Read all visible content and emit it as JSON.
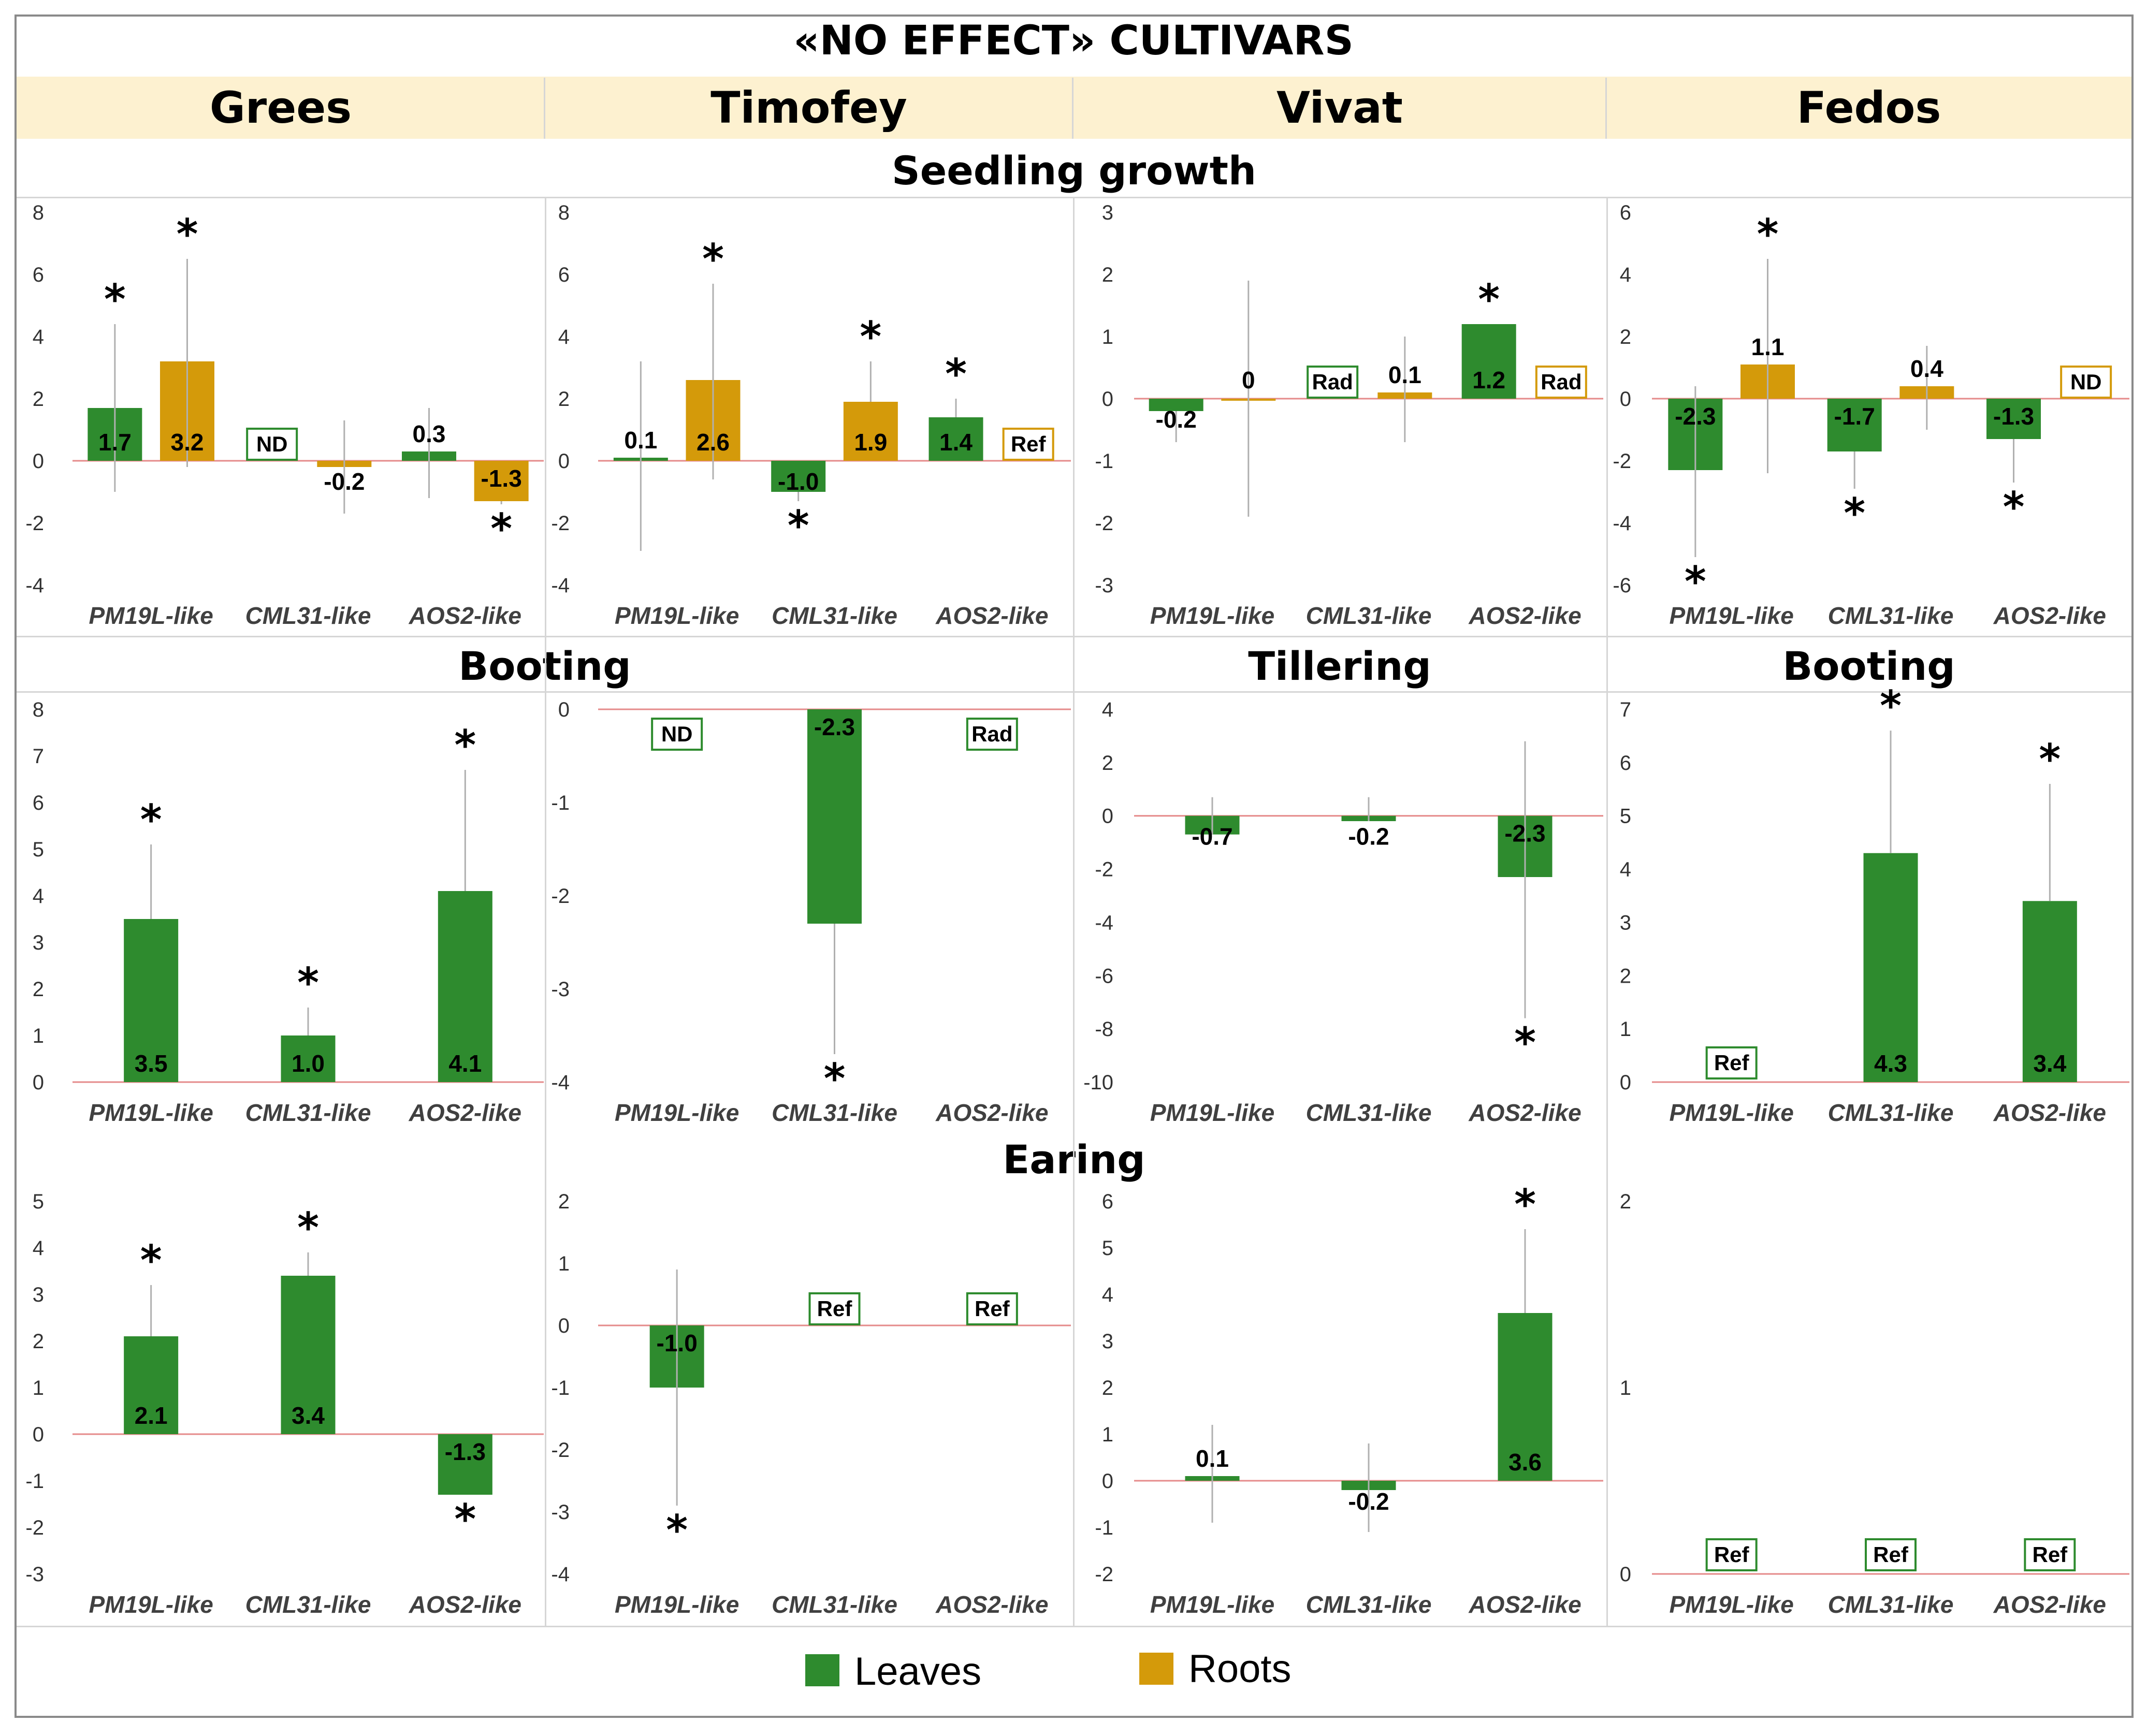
{
  "title": "«NO EFFECT» CULTIVARS",
  "cultivars": [
    "Grees",
    "Timofey",
    "Vivat",
    "Fedos"
  ],
  "stages": {
    "seedling": "Seedling growth",
    "booting_left": "Booting",
    "tillering": "Tillering",
    "booting_right": "Booting",
    "earing": "Earing"
  },
  "legend": {
    "leaves": "Leaves",
    "roots": "Roots"
  },
  "colors": {
    "leaves": "#2e8b2e",
    "roots": "#d49a0a",
    "zero_line": "#e58a8a",
    "error_bar": "#b0b0b0"
  },
  "chart_data": [
    {
      "id": "p1",
      "cultivar": "Grees",
      "stage": "Seedling growth",
      "type": "bar",
      "categories": [
        "PM19L-like",
        "CML31-like",
        "AOS2-like"
      ],
      "yticks": [
        "8",
        "6",
        "4",
        "2",
        "0",
        "-2",
        "-4"
      ],
      "ylim": [
        -4,
        8
      ],
      "xlabel": "",
      "ylabel": "",
      "series": [
        {
          "name": "Leaves",
          "values": [
            1.7,
            null,
            0.3
          ],
          "labels": [
            "1.7",
            "ND",
            "0.3"
          ],
          "err": [
            [
              -1,
              4.4
            ],
            null,
            [
              -1.2,
              1.7
            ]
          ],
          "star": [
            true,
            false,
            false
          ]
        },
        {
          "name": "Roots",
          "values": [
            3.2,
            -0.2,
            -1.3
          ],
          "labels": [
            "3.2",
            "-0.2",
            "-1.3"
          ],
          "err": [
            [
              -0.2,
              6.5
            ],
            [
              -1.7,
              1.3
            ],
            [
              -1.4,
              -1.3
            ]
          ],
          "star": [
            true,
            false,
            true
          ]
        }
      ]
    },
    {
      "id": "p2",
      "cultivar": "Timofey",
      "stage": "Seedling growth",
      "type": "bar",
      "categories": [
        "PM19L-like",
        "CML31-like",
        "AOS2-like"
      ],
      "yticks": [
        "8",
        "6",
        "4",
        "2",
        "0",
        "-2",
        "-4"
      ],
      "ylim": [
        -4,
        8
      ],
      "xlabel": "",
      "ylabel": "",
      "series": [
        {
          "name": "Leaves",
          "values": [
            0.1,
            -1.0,
            1.4
          ],
          "labels": [
            "0.1",
            "-1.0",
            "1.4"
          ],
          "err": [
            [
              -2.9,
              3.2
            ],
            [
              -1.3,
              -1.0
            ],
            [
              1.4,
              2.0
            ]
          ],
          "star": [
            false,
            true,
            true
          ]
        },
        {
          "name": "Roots",
          "values": [
            2.6,
            1.9,
            null
          ],
          "labels": [
            "2.6",
            "1.9",
            "Ref"
          ],
          "err": [
            [
              -0.6,
              5.7
            ],
            [
              1.9,
              3.2
            ],
            null
          ],
          "star": [
            true,
            true,
            false
          ]
        }
      ]
    },
    {
      "id": "p3",
      "cultivar": "Vivat",
      "stage": "Seedling growth",
      "type": "bar",
      "categories": [
        "PM19L-like",
        "CML31-like",
        "AOS2-like"
      ],
      "yticks": [
        "3",
        "2",
        "1",
        "0",
        "-1",
        "-2",
        "-3"
      ],
      "ylim": [
        -3,
        3
      ],
      "xlabel": "",
      "ylabel": "",
      "series": [
        {
          "name": "Leaves",
          "values": [
            -0.2,
            null,
            1.2
          ],
          "labels": [
            "-0.2",
            "Rad",
            "1.2"
          ],
          "err": [
            [
              -0.7,
              -0.2
            ],
            null,
            [
              1.2,
              1.2
            ]
          ],
          "star": [
            false,
            false,
            true
          ]
        },
        {
          "name": "Roots",
          "values": [
            0,
            0.1,
            null
          ],
          "labels": [
            "0",
            "0.1",
            "Rad"
          ],
          "err": [
            [
              -1.9,
              1.9
            ],
            [
              -0.7,
              1.0
            ],
            null
          ],
          "star": [
            false,
            false,
            false
          ]
        }
      ]
    },
    {
      "id": "p4",
      "cultivar": "Fedos",
      "stage": "Seedling growth",
      "type": "bar",
      "categories": [
        "PM19L-like",
        "CML31-like",
        "AOS2-like"
      ],
      "yticks": [
        "6",
        "4",
        "2",
        "0",
        "-2",
        "-4",
        "-6"
      ],
      "ylim": [
        -6,
        6
      ],
      "xlabel": "",
      "ylabel": "",
      "series": [
        {
          "name": "Leaves",
          "values": [
            -2.3,
            -1.7,
            -1.3
          ],
          "labels": [
            "-2.3",
            "-1.7",
            "-1.3"
          ],
          "err": [
            [
              -5.1,
              0.4
            ],
            [
              -2.9,
              -1.7
            ],
            [
              -2.7,
              -1.3
            ]
          ],
          "star": [
            true,
            true,
            true
          ]
        },
        {
          "name": "Roots",
          "values": [
            1.1,
            0.4,
            null
          ],
          "labels": [
            "1.1",
            "0.4",
            "ND"
          ],
          "err": [
            [
              -2.4,
              4.5
            ],
            [
              -1.0,
              1.7
            ],
            null
          ],
          "star": [
            true,
            false,
            false
          ]
        }
      ]
    },
    {
      "id": "p5",
      "cultivar": "Grees",
      "stage": "Booting",
      "type": "bar",
      "categories": [
        "PM19L-like",
        "CML31-like",
        "AOS2-like"
      ],
      "yticks": [
        "8",
        "7",
        "6",
        "5",
        "4",
        "3",
        "2",
        "1",
        "0"
      ],
      "ylim": [
        0,
        8
      ],
      "xlabel": "",
      "ylabel": "",
      "series": [
        {
          "name": "Leaves",
          "values": [
            3.5,
            1.0,
            4.1
          ],
          "labels": [
            "3.5",
            "1.0",
            "4.1"
          ],
          "err": [
            [
              3.5,
              5.1
            ],
            [
              1.0,
              1.6
            ],
            [
              4.1,
              6.7
            ]
          ],
          "star": [
            true,
            true,
            true
          ]
        }
      ]
    },
    {
      "id": "p6",
      "cultivar": "Timofey",
      "stage": "Booting",
      "type": "bar",
      "categories": [
        "PM19L-like",
        "CML31-like",
        "AOS2-like"
      ],
      "yticks": [
        "0",
        "-1",
        "-2",
        "-3",
        "-4"
      ],
      "ylim": [
        -4,
        0
      ],
      "xlabel": "",
      "ylabel": "",
      "series": [
        {
          "name": "Leaves",
          "values": [
            null,
            -2.3,
            null
          ],
          "labels": [
            "ND",
            "-2.3",
            "Rad"
          ],
          "err": [
            null,
            [
              -3.7,
              -2.3
            ],
            null
          ],
          "star": [
            false,
            true,
            false
          ]
        }
      ]
    },
    {
      "id": "p7",
      "cultivar": "Vivat",
      "stage": "Tillering",
      "type": "bar",
      "categories": [
        "PM19L-like",
        "CML31-like",
        "AOS2-like"
      ],
      "yticks": [
        "4",
        "2",
        "0",
        "-2",
        "-4",
        "-6",
        "-8",
        "-10"
      ],
      "ylim": [
        -10,
        4
      ],
      "xlabel": "",
      "ylabel": "",
      "series": [
        {
          "name": "Leaves",
          "values": [
            -0.7,
            -0.2,
            -2.3
          ],
          "labels": [
            "-0.7",
            "-0.2",
            "-2.3"
          ],
          "err": [
            [
              -0.7,
              0.7
            ],
            [
              -0.2,
              0.7
            ],
            [
              -7.6,
              2.8
            ]
          ],
          "star": [
            false,
            false,
            true
          ]
        }
      ]
    },
    {
      "id": "p8",
      "cultivar": "Fedos",
      "stage": "Booting",
      "type": "bar",
      "categories": [
        "PM19L-like",
        "CML31-like",
        "AOS2-like"
      ],
      "yticks": [
        "7",
        "6",
        "5",
        "4",
        "3",
        "2",
        "1",
        "0"
      ],
      "ylim": [
        0,
        7
      ],
      "xlabel": "",
      "ylabel": "",
      "series": [
        {
          "name": "Leaves",
          "values": [
            null,
            4.3,
            3.4
          ],
          "labels": [
            "Ref",
            "4.3",
            "3.4"
          ],
          "err": [
            null,
            [
              4.3,
              6.6
            ],
            [
              3.4,
              5.6
            ]
          ],
          "star": [
            false,
            true,
            true
          ]
        }
      ]
    },
    {
      "id": "p9",
      "cultivar": "Grees",
      "stage": "Earing",
      "type": "bar",
      "categories": [
        "PM19L-like",
        "CML31-like",
        "AOS2-like"
      ],
      "yticks": [
        "5",
        "4",
        "3",
        "2",
        "1",
        "0",
        "-1",
        "-2",
        "-3"
      ],
      "ylim": [
        -3,
        5
      ],
      "xlabel": "",
      "ylabel": "",
      "series": [
        {
          "name": "Leaves",
          "values": [
            2.1,
            3.4,
            -1.3
          ],
          "labels": [
            "2.1",
            "3.4",
            "-1.3"
          ],
          "err": [
            [
              2.1,
              3.2
            ],
            [
              3.4,
              3.9
            ],
            [
              -1.3,
              -1.3
            ]
          ],
          "star": [
            true,
            true,
            true
          ]
        }
      ]
    },
    {
      "id": "p10",
      "cultivar": "Timofey",
      "stage": "Earing",
      "type": "bar",
      "categories": [
        "PM19L-like",
        "CML31-like",
        "AOS2-like"
      ],
      "yticks": [
        "2",
        "1",
        "0",
        "-1",
        "-2",
        "-3",
        "-4"
      ],
      "ylim": [
        -4,
        2
      ],
      "xlabel": "",
      "ylabel": "",
      "series": [
        {
          "name": "Leaves",
          "values": [
            -1.0,
            null,
            null
          ],
          "labels": [
            "-1.0",
            "Ref",
            "Ref"
          ],
          "err": [
            [
              -2.9,
              0.9
            ],
            null,
            null
          ],
          "star": [
            true,
            false,
            false
          ]
        }
      ]
    },
    {
      "id": "p11",
      "cultivar": "Vivat",
      "stage": "Earing",
      "type": "bar",
      "categories": [
        "PM19L-like",
        "CML31-like",
        "AOS2-like"
      ],
      "yticks": [
        "6",
        "5",
        "4",
        "3",
        "2",
        "1",
        "0",
        "-1",
        "-2"
      ],
      "ylim": [
        -2,
        6
      ],
      "xlabel": "",
      "ylabel": "",
      "series": [
        {
          "name": "Leaves",
          "values": [
            0.1,
            -0.2,
            3.6
          ],
          "labels": [
            "0.1",
            "-0.2",
            "3.6"
          ],
          "err": [
            [
              -0.9,
              1.2
            ],
            [
              -1.1,
              0.8
            ],
            [
              3.6,
              5.4
            ]
          ],
          "star": [
            false,
            false,
            true
          ]
        }
      ]
    },
    {
      "id": "p12",
      "cultivar": "Fedos",
      "stage": "Earing",
      "type": "bar",
      "categories": [
        "PM19L-like",
        "CML31-like",
        "AOS2-like"
      ],
      "yticks": [
        "2",
        "1",
        "0"
      ],
      "ylim": [
        0,
        2
      ],
      "xlabel": "",
      "ylabel": "",
      "series": [
        {
          "name": "Leaves",
          "values": [
            null,
            null,
            null
          ],
          "labels": [
            "Ref",
            "Ref",
            "Ref"
          ],
          "err": [
            null,
            null,
            null
          ],
          "star": [
            false,
            false,
            false
          ]
        }
      ]
    }
  ]
}
